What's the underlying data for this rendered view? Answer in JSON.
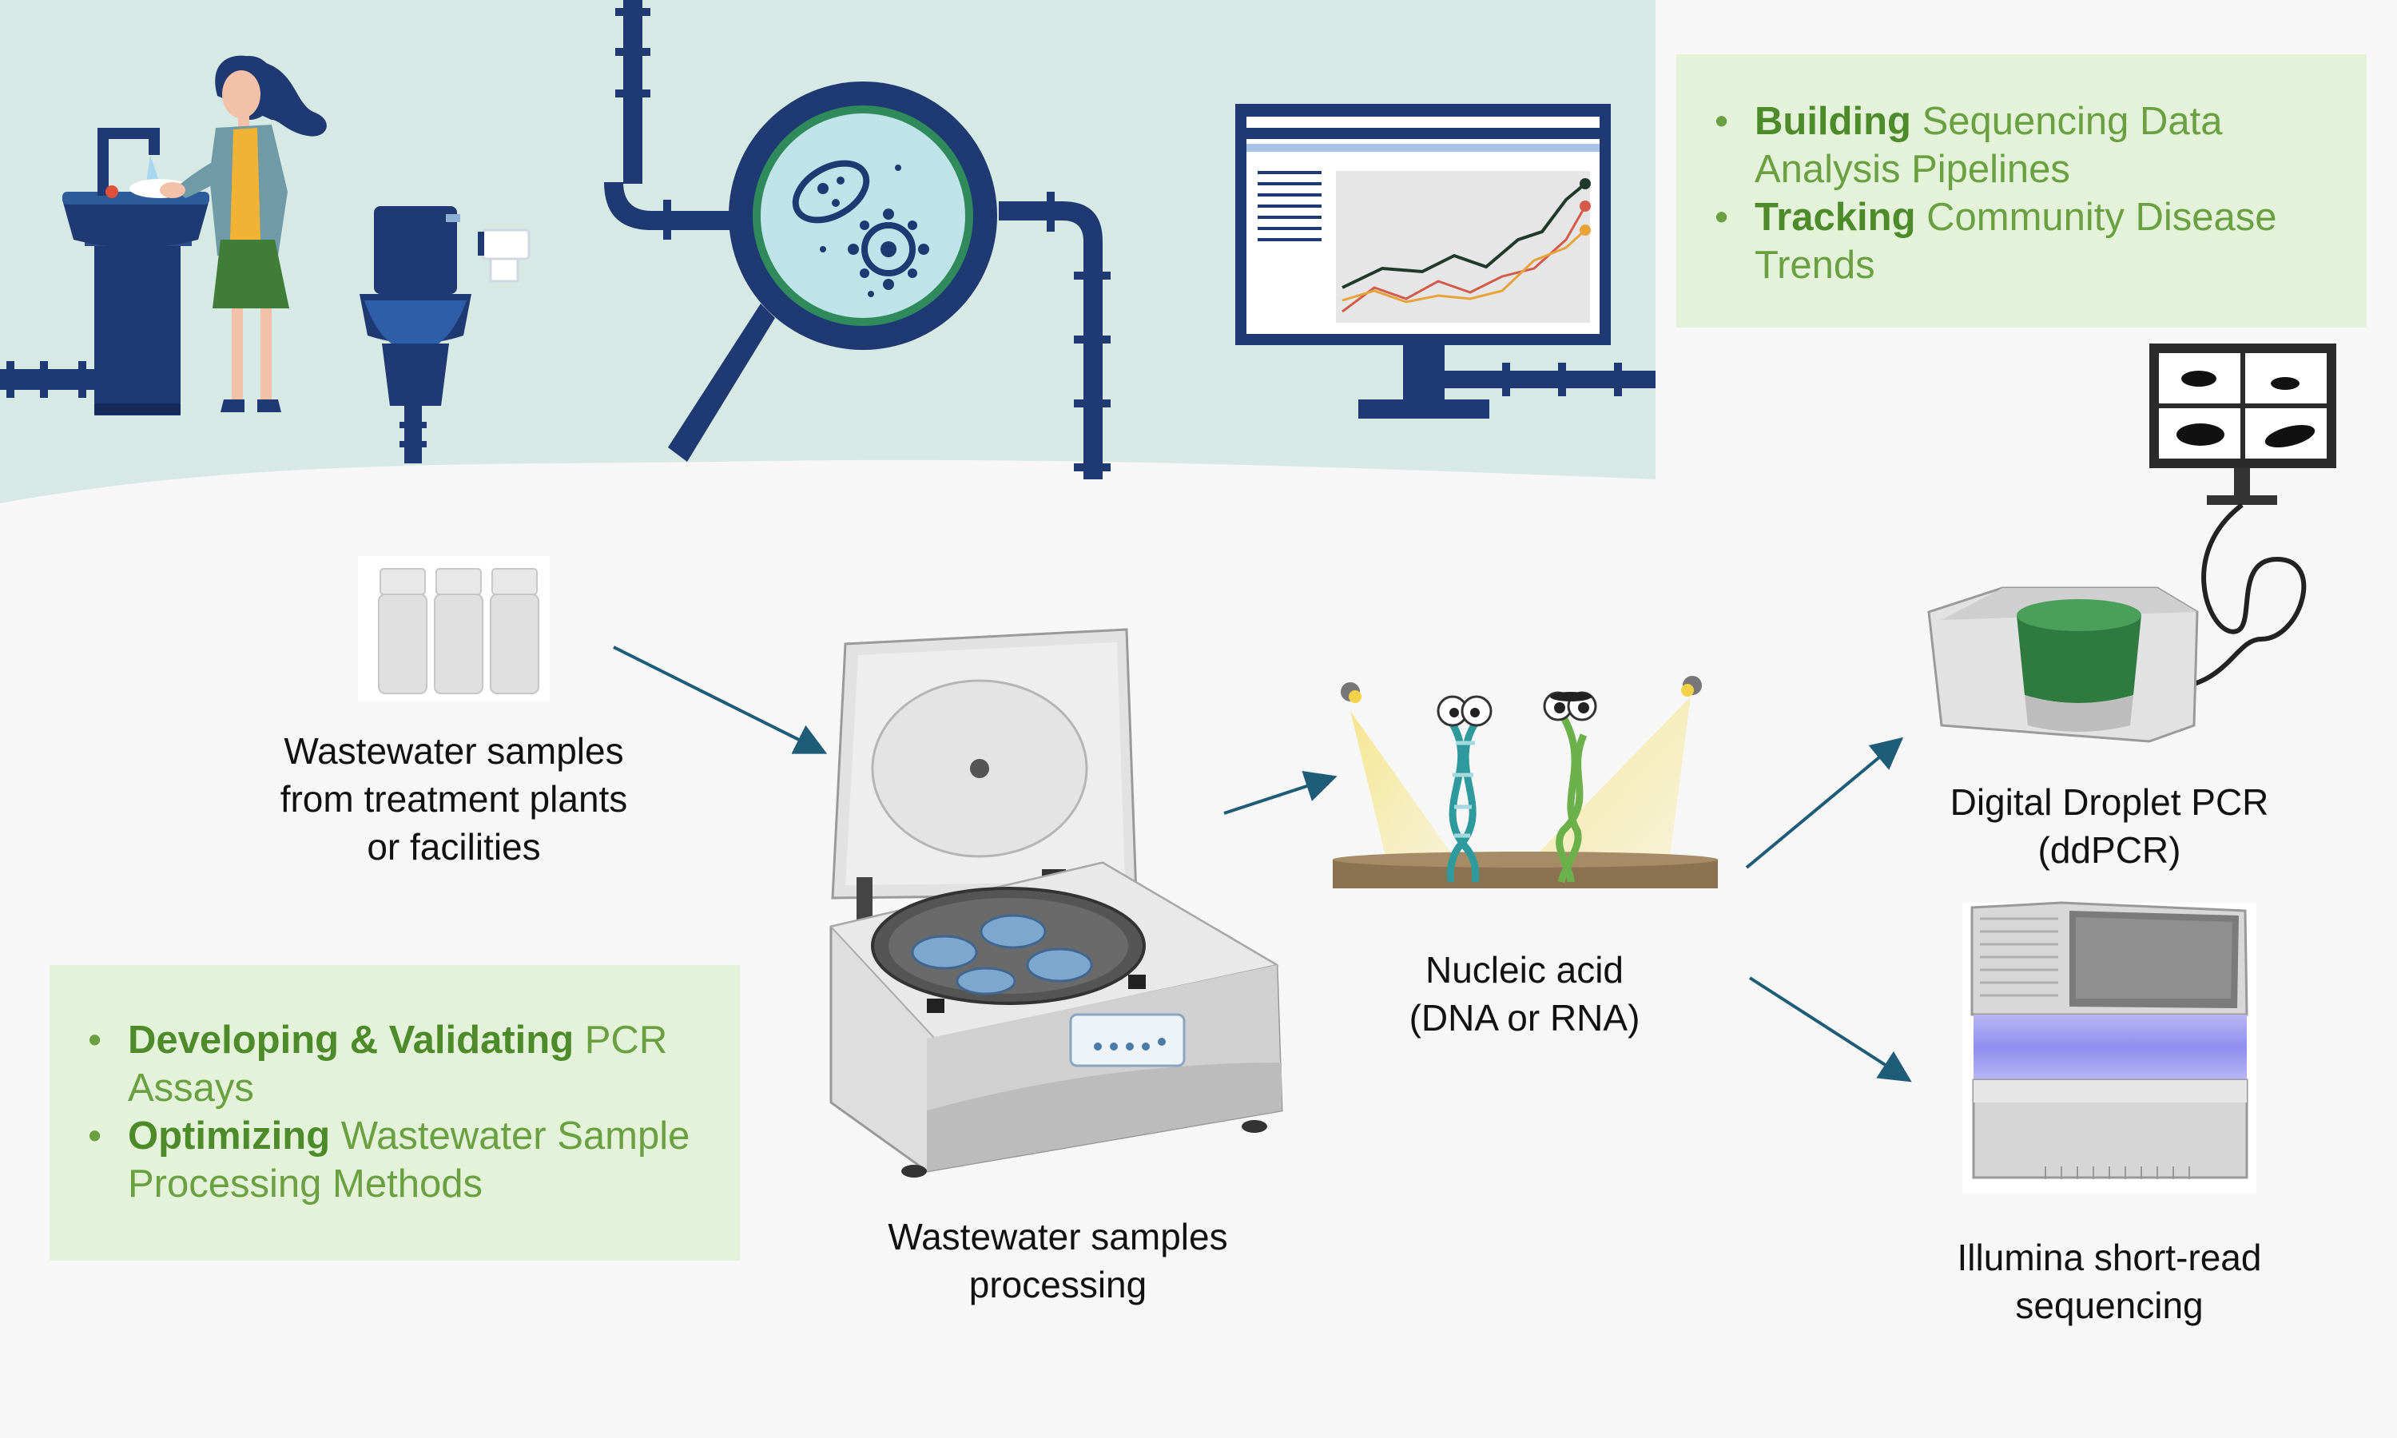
{
  "top_box": {
    "items": [
      {
        "bold": "Building",
        "text": " Sequencing Data Analysis Pipelines"
      },
      {
        "bold": "Tracking",
        "text": " Community Disease Trends"
      }
    ]
  },
  "bottom_box": {
    "items": [
      {
        "bold": "Developing & Validating",
        "text": " PCR Assays"
      },
      {
        "bold": "Optimizing",
        "text": " Wastewater Sample Processing Methods"
      }
    ]
  },
  "captions": {
    "samples": [
      "Wastewater samples",
      "from treatment plants",
      "or facilities"
    ],
    "processing": [
      "Wastewater samples",
      "processing"
    ],
    "nucleic": [
      "Nucleic acid",
      "(DNA or RNA)"
    ],
    "ddpcr": [
      "Digital Droplet PCR",
      "(ddPCR)"
    ],
    "illumina": [
      "Illumina short-read",
      "sequencing"
    ]
  },
  "colors": {
    "navy": "#1f3a73",
    "teal_bg": "#d6e9e4",
    "green_box": "#e3f2d9",
    "green_text": "#6aa041",
    "arrow": "#1e5c78"
  }
}
